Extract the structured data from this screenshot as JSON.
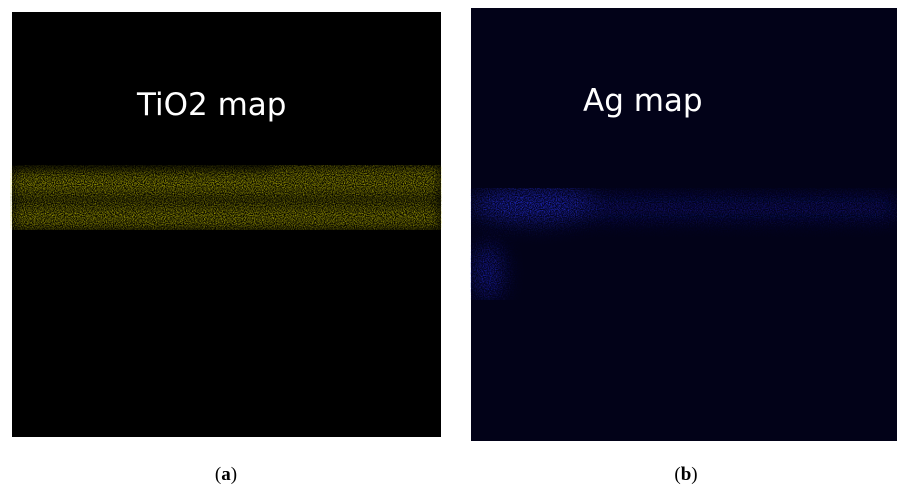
{
  "panels": [
    {
      "label": "TiO2 map",
      "caption": {
        "open": "(",
        "letter": "a",
        "close": ")"
      }
    },
    {
      "label": "Ag map",
      "caption": {
        "open": "(",
        "letter": "b",
        "close": ")"
      }
    }
  ]
}
